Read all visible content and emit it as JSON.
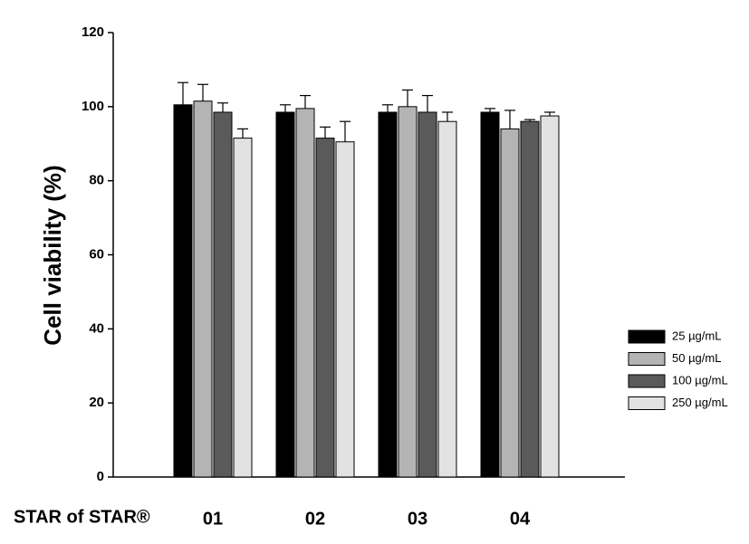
{
  "chart_data": {
    "type": "bar",
    "y_label": "Cell viability (%)",
    "x_label": "STAR of STAR®",
    "categories": [
      "01",
      "02",
      "03",
      "04"
    ],
    "ylim": [
      0,
      120
    ],
    "yticks": [
      0,
      20,
      40,
      60,
      80,
      100,
      120
    ],
    "legend": "right",
    "series": [
      {
        "name": "25 µg/mL",
        "color": "#000000",
        "values": [
          100.5,
          98.5,
          98.5,
          98.5
        ],
        "errors": [
          6,
          2,
          2,
          1
        ]
      },
      {
        "name": "50 µg/mL",
        "color": "#b4b4b4",
        "values": [
          101.5,
          99.5,
          100,
          94
        ],
        "errors": [
          4.5,
          3.5,
          4.5,
          5
        ]
      },
      {
        "name": "100 µg/mL",
        "color": "#5a5a5a",
        "values": [
          98.5,
          91.5,
          98.5,
          96
        ],
        "errors": [
          2.5,
          3,
          4.5,
          0.5
        ]
      },
      {
        "name": "250 µg/mL",
        "color": "#e2e2e2",
        "values": [
          91.5,
          90.5,
          96,
          97.5
        ],
        "errors": [
          2.5,
          5.5,
          2.5,
          1
        ]
      }
    ]
  }
}
